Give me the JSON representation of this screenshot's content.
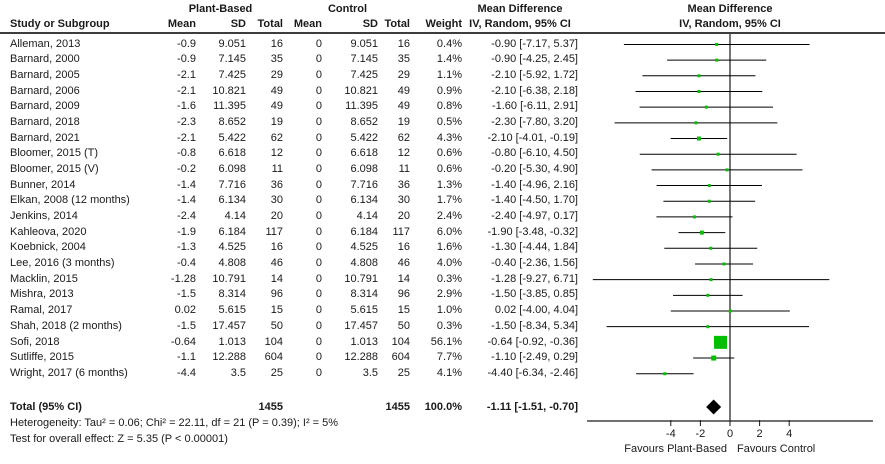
{
  "headers": {
    "study": "Study or Subgroup",
    "group_plant": "Plant-Based",
    "group_control": "Control",
    "mean_pb": "Mean",
    "sd_pb": "SD",
    "total_pb": "Total",
    "mean_c": "Mean",
    "sd_c": "SD",
    "total_c": "Total",
    "weight": "Weight",
    "md_title_text": "Mean Difference",
    "md_sub_text": "IV, Random, 95% CI",
    "md_title_plot": "Mean Difference",
    "md_sub_plot": "IV, Random, 95% CI"
  },
  "footer": {
    "heterogeneity": "Heterogeneity: Tau² = 0.06; Chi² = 22.11, df = 21 (P = 0.39); I² = 5%",
    "overall_effect": "Test for overall effect: Z = 5.35 (P < 0.00001)"
  },
  "chart_data": {
    "type": "forest",
    "effect_measure": "Mean Difference, IV, Random, 95% CI",
    "studies": [
      {
        "label": "Alleman, 2013",
        "mean_pb": "-0.9",
        "sd_pb": "9.051",
        "n_pb": "16",
        "mean_c": "0",
        "sd_c": "9.051",
        "n_c": "16",
        "weight": "0.4%",
        "weight_pct": 0.4,
        "ci_text": "-0.90 [-7.17, 5.37]",
        "md": -0.9,
        "lo": -7.17,
        "hi": 5.37
      },
      {
        "label": "Barnard, 2000",
        "mean_pb": "-0.9",
        "sd_pb": "7.145",
        "n_pb": "35",
        "mean_c": "0",
        "sd_c": "7.145",
        "n_c": "35",
        "weight": "1.4%",
        "weight_pct": 1.4,
        "ci_text": "-0.90 [-4.25, 2.45]",
        "md": -0.9,
        "lo": -4.25,
        "hi": 2.45
      },
      {
        "label": "Barnard, 2005",
        "mean_pb": "-2.1",
        "sd_pb": "7.425",
        "n_pb": "29",
        "mean_c": "0",
        "sd_c": "7.425",
        "n_c": "29",
        "weight": "1.1%",
        "weight_pct": 1.1,
        "ci_text": "-2.10 [-5.92, 1.72]",
        "md": -2.1,
        "lo": -5.92,
        "hi": 1.72
      },
      {
        "label": "Barnard, 2006",
        "mean_pb": "-2.1",
        "sd_pb": "10.821",
        "n_pb": "49",
        "mean_c": "0",
        "sd_c": "10.821",
        "n_c": "49",
        "weight": "0.9%",
        "weight_pct": 0.9,
        "ci_text": "-2.10 [-6.38, 2.18]",
        "md": -2.1,
        "lo": -6.38,
        "hi": 2.18
      },
      {
        "label": "Barnard, 2009",
        "mean_pb": "-1.6",
        "sd_pb": "11.395",
        "n_pb": "49",
        "mean_c": "0",
        "sd_c": "11.395",
        "n_c": "49",
        "weight": "0.8%",
        "weight_pct": 0.8,
        "ci_text": "-1.60 [-6.11, 2.91]",
        "md": -1.6,
        "lo": -6.11,
        "hi": 2.91
      },
      {
        "label": "Barnard, 2018",
        "mean_pb": "-2.3",
        "sd_pb": "8.652",
        "n_pb": "19",
        "mean_c": "0",
        "sd_c": "8.652",
        "n_c": "19",
        "weight": "0.5%",
        "weight_pct": 0.5,
        "ci_text": "-2.30 [-7.80, 3.20]",
        "md": -2.3,
        "lo": -7.8,
        "hi": 3.2
      },
      {
        "label": "Barnard, 2021",
        "mean_pb": "-2.1",
        "sd_pb": "5.422",
        "n_pb": "62",
        "mean_c": "0",
        "sd_c": "5.422",
        "n_c": "62",
        "weight": "4.3%",
        "weight_pct": 4.3,
        "ci_text": "-2.10 [-4.01, -0.19]",
        "md": -2.1,
        "lo": -4.01,
        "hi": -0.19
      },
      {
        "label": "Bloomer, 2015 (T)",
        "mean_pb": "-0.8",
        "sd_pb": "6.618",
        "n_pb": "12",
        "mean_c": "0",
        "sd_c": "6.618",
        "n_c": "12",
        "weight": "0.6%",
        "weight_pct": 0.6,
        "ci_text": "-0.80 [-6.10, 4.50]",
        "md": -0.8,
        "lo": -6.1,
        "hi": 4.5
      },
      {
        "label": "Bloomer, 2015 (V)",
        "mean_pb": "-0.2",
        "sd_pb": "6.098",
        "n_pb": "11",
        "mean_c": "0",
        "sd_c": "6.098",
        "n_c": "11",
        "weight": "0.6%",
        "weight_pct": 0.6,
        "ci_text": "-0.20 [-5.30, 4.90]",
        "md": -0.2,
        "lo": -5.3,
        "hi": 4.9
      },
      {
        "label": "Bunner, 2014",
        "mean_pb": "-1.4",
        "sd_pb": "7.716",
        "n_pb": "36",
        "mean_c": "0",
        "sd_c": "7.716",
        "n_c": "36",
        "weight": "1.3%",
        "weight_pct": 1.3,
        "ci_text": "-1.40 [-4.96, 2.16]",
        "md": -1.4,
        "lo": -4.96,
        "hi": 2.16
      },
      {
        "label": "Elkan, 2008 (12 months)",
        "mean_pb": "-1.4",
        "sd_pb": "6.134",
        "n_pb": "30",
        "mean_c": "0",
        "sd_c": "6.134",
        "n_c": "30",
        "weight": "1.7%",
        "weight_pct": 1.7,
        "ci_text": "-1.40 [-4.50, 1.70]",
        "md": -1.4,
        "lo": -4.5,
        "hi": 1.7
      },
      {
        "label": "Jenkins, 2014",
        "mean_pb": "-2.4",
        "sd_pb": "4.14",
        "n_pb": "20",
        "mean_c": "0",
        "sd_c": "4.14",
        "n_c": "20",
        "weight": "2.4%",
        "weight_pct": 2.4,
        "ci_text": "-2.40 [-4.97, 0.17]",
        "md": -2.4,
        "lo": -4.97,
        "hi": 0.17
      },
      {
        "label": "Kahleova, 2020",
        "mean_pb": "-1.9",
        "sd_pb": "6.184",
        "n_pb": "117",
        "mean_c": "0",
        "sd_c": "6.184",
        "n_c": "117",
        "weight": "6.0%",
        "weight_pct": 6.0,
        "ci_text": "-1.90 [-3.48, -0.32]",
        "md": -1.9,
        "lo": -3.48,
        "hi": -0.32
      },
      {
        "label": "Koebnick, 2004",
        "mean_pb": "-1.3",
        "sd_pb": "4.525",
        "n_pb": "16",
        "mean_c": "0",
        "sd_c": "4.525",
        "n_c": "16",
        "weight": "1.6%",
        "weight_pct": 1.6,
        "ci_text": "-1.30 [-4.44, 1.84]",
        "md": -1.3,
        "lo": -4.44,
        "hi": 1.84
      },
      {
        "label": "Lee, 2016 (3 months)",
        "mean_pb": "-0.4",
        "sd_pb": "4.808",
        "n_pb": "46",
        "mean_c": "0",
        "sd_c": "4.808",
        "n_c": "46",
        "weight": "4.0%",
        "weight_pct": 4.0,
        "ci_text": "-0.40 [-2.36, 1.56]",
        "md": -0.4,
        "lo": -2.36,
        "hi": 1.56
      },
      {
        "label": "Macklin, 2015",
        "mean_pb": "-1.28",
        "sd_pb": "10.791",
        "n_pb": "14",
        "mean_c": "0",
        "sd_c": "10.791",
        "n_c": "14",
        "weight": "0.3%",
        "weight_pct": 0.3,
        "ci_text": "-1.28 [-9.27, 6.71]",
        "md": -1.28,
        "lo": -9.27,
        "hi": 6.71
      },
      {
        "label": "Mishra, 2013",
        "mean_pb": "-1.5",
        "sd_pb": "8.314",
        "n_pb": "96",
        "mean_c": "0",
        "sd_c": "8.314",
        "n_c": "96",
        "weight": "2.9%",
        "weight_pct": 2.9,
        "ci_text": "-1.50 [-3.85, 0.85]",
        "md": -1.5,
        "lo": -3.85,
        "hi": 0.85
      },
      {
        "label": "Ramal, 2017",
        "mean_pb": "0.02",
        "sd_pb": "5.615",
        "n_pb": "15",
        "mean_c": "0",
        "sd_c": "5.615",
        "n_c": "15",
        "weight": "1.0%",
        "weight_pct": 1.0,
        "ci_text": "0.02 [-4.00, 4.04]",
        "md": 0.02,
        "lo": -4.0,
        "hi": 4.04
      },
      {
        "label": "Shah, 2018 (2 months)",
        "mean_pb": "-1.5",
        "sd_pb": "17.457",
        "n_pb": "50",
        "mean_c": "0",
        "sd_c": "17.457",
        "n_c": "50",
        "weight": "0.3%",
        "weight_pct": 0.3,
        "ci_text": "-1.50 [-8.34, 5.34]",
        "md": -1.5,
        "lo": -8.34,
        "hi": 5.34
      },
      {
        "label": "Sofi, 2018",
        "mean_pb": "-0.64",
        "sd_pb": "1.013",
        "n_pb": "104",
        "mean_c": "0",
        "sd_c": "1.013",
        "n_c": "104",
        "weight": "56.1%",
        "weight_pct": 56.1,
        "ci_text": "-0.64 [-0.92, -0.36]",
        "md": -0.64,
        "lo": -0.92,
        "hi": -0.36
      },
      {
        "label": "Sutliffe, 2015",
        "mean_pb": "-1.1",
        "sd_pb": "12.288",
        "n_pb": "604",
        "mean_c": "0",
        "sd_c": "12.288",
        "n_c": "604",
        "weight": "7.7%",
        "weight_pct": 7.7,
        "ci_text": "-1.10 [-2.49, 0.29]",
        "md": -1.1,
        "lo": -2.49,
        "hi": 0.29
      },
      {
        "label": "Wright, 2017 (6 months)",
        "mean_pb": "-4.4",
        "sd_pb": "3.5",
        "n_pb": "25",
        "mean_c": "0",
        "sd_c": "3.5",
        "n_c": "25",
        "weight": "4.1%",
        "weight_pct": 4.1,
        "ci_text": "-4.40 [-6.34, -2.46]",
        "md": -4.4,
        "lo": -6.34,
        "hi": -2.46
      }
    ],
    "total": {
      "label": "Total (95% CI)",
      "n_pb": "1455",
      "n_c": "1455",
      "weight": "100.0%",
      "ci_text": "-1.11 [-1.51, -0.70]",
      "md": -1.11,
      "lo": -1.51,
      "hi": -0.7
    },
    "axis": {
      "ticks": [
        -4,
        -2,
        0,
        2,
        4
      ],
      "tick_labels": [
        "-4",
        "-2",
        "0",
        "2",
        "4"
      ],
      "x_min": -9.66,
      "x_max": 9.66,
      "favours_left": "Favours Plant-Based",
      "favours_right": "Favours Control"
    },
    "colors": {
      "marker": "#00bf00",
      "diamond": "#000000",
      "ci_line": "#000000",
      "axis": "#1a1a1a",
      "rule": "#3d3d3d"
    }
  }
}
